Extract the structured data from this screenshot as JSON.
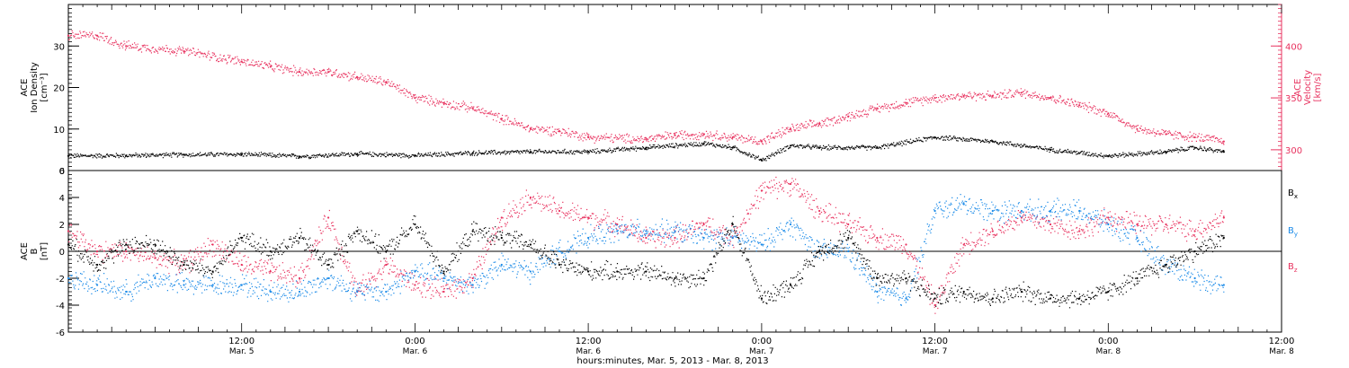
{
  "x_axis": {
    "label": "hours:minutes, Mar.  5, 2013 - Mar.  8, 2013",
    "range_hours": [
      0,
      84
    ],
    "ticks": [
      {
        "hours": 12,
        "time": "12:00",
        "date": "Mar. 5"
      },
      {
        "hours": 24,
        "time": "0:00",
        "date": "Mar. 6"
      },
      {
        "hours": 36,
        "time": "12:00",
        "date": "Mar. 6"
      },
      {
        "hours": 48,
        "time": "0:00",
        "date": "Mar. 7"
      },
      {
        "hours": 60,
        "time": "12:00",
        "date": "Mar. 7"
      },
      {
        "hours": 72,
        "time": "0:00",
        "date": "Mar. 8"
      },
      {
        "hours": 84,
        "time": "12:00",
        "date": "Mar. 8"
      }
    ]
  },
  "chart_data": [
    {
      "type": "scatter",
      "panel": "top",
      "left_axis": {
        "label_lines": [
          "ACE",
          "Ion Density",
          "[cm⁻³]"
        ],
        "ylim": [
          0,
          40
        ],
        "ticks": [
          0,
          10,
          20,
          30
        ],
        "color": "#000000"
      },
      "right_axis": {
        "label_lines": [
          "ACE",
          "Velocity",
          "[km/s]"
        ],
        "ylim": [
          280,
          440
        ],
        "ticks": [
          300,
          350,
          400
        ],
        "color": "#e8325f"
      },
      "series": [
        {
          "axis": "left",
          "color": "#000000",
          "x": [
            0,
            4,
            8,
            12,
            16,
            20,
            24,
            28,
            32,
            36,
            40,
            44,
            46,
            48,
            50,
            52,
            56,
            60,
            64,
            68,
            72,
            76,
            78,
            80
          ],
          "y": [
            3.5,
            3.6,
            3.8,
            3.9,
            3.4,
            4.0,
            3.6,
            4.2,
            4.5,
            4.5,
            5.5,
            6.5,
            5.5,
            2.5,
            6.0,
            5.5,
            5.5,
            8.0,
            7.0,
            5.0,
            3.5,
            4.5,
            5.5,
            4.5
          ]
        },
        {
          "axis": "right",
          "color": "#e8325f",
          "x": [
            0,
            2,
            4,
            8,
            12,
            14,
            16,
            18,
            20,
            22,
            24,
            26,
            28,
            30,
            32,
            34,
            36,
            40,
            42,
            44,
            46,
            48,
            50,
            52,
            54,
            56,
            58,
            60,
            62,
            64,
            66,
            68,
            70,
            72,
            74,
            76,
            78,
            80
          ],
          "y": [
            410,
            410,
            400,
            395,
            385,
            380,
            375,
            375,
            370,
            365,
            350,
            345,
            340,
            330,
            320,
            318,
            312,
            310,
            314,
            315,
            312,
            308,
            320,
            325,
            332,
            340,
            345,
            350,
            352,
            352,
            355,
            350,
            343,
            335,
            320,
            315,
            312,
            308
          ]
        }
      ]
    },
    {
      "type": "scatter",
      "panel": "bottom",
      "left_axis": {
        "label_lines": [
          "ACE",
          "B",
          "[nT]"
        ],
        "ylim": [
          -6,
          6
        ],
        "ticks": [
          -6,
          -4,
          -2,
          0,
          2,
          4,
          6
        ],
        "color": "#000000"
      },
      "legend": {
        "placement": "right",
        "entries": [
          {
            "name": "Bx",
            "main": "B",
            "sub": "x",
            "color": "#000000"
          },
          {
            "name": "By",
            "main": "B",
            "sub": "y",
            "color": "#1a8ae8"
          },
          {
            "name": "Bz",
            "main": "B",
            "sub": "z",
            "color": "#e8325f"
          }
        ]
      },
      "series": [
        {
          "name": "Bx",
          "color": "#000000",
          "x": [
            0,
            2,
            4,
            6,
            8,
            10,
            12,
            14,
            16,
            18,
            20,
            22,
            24,
            26,
            28,
            30,
            32,
            34,
            36,
            38,
            40,
            42,
            44,
            46,
            48,
            50,
            52,
            54,
            56,
            58,
            60,
            62,
            64,
            66,
            68,
            70,
            72,
            74,
            76,
            78,
            80
          ],
          "y": [
            0.5,
            -1.0,
            0.5,
            0.5,
            -1.0,
            -1.5,
            1.0,
            0.0,
            1.0,
            -1.0,
            1.5,
            0.0,
            2.0,
            -1.5,
            1.5,
            1.0,
            0.5,
            -1.0,
            -1.5,
            -1.5,
            -1.5,
            -2.0,
            -2.0,
            2.0,
            -3.5,
            -2.5,
            0.0,
            1.0,
            -2.0,
            -2.0,
            -3.5,
            -3.0,
            -3.5,
            -3.0,
            -3.5,
            -3.5,
            -3.0,
            -2.0,
            -1.0,
            0.0,
            1.0
          ]
        },
        {
          "name": "By",
          "color": "#1a8ae8",
          "x": [
            0,
            2,
            4,
            6,
            8,
            10,
            12,
            14,
            16,
            18,
            20,
            22,
            24,
            26,
            28,
            30,
            32,
            34,
            36,
            38,
            40,
            42,
            44,
            46,
            48,
            50,
            52,
            54,
            56,
            58,
            60,
            62,
            64,
            66,
            68,
            70,
            72,
            74,
            76,
            78,
            80
          ],
          "y": [
            -2.0,
            -2.5,
            -3.0,
            -2.0,
            -2.5,
            -2.5,
            -2.5,
            -3.0,
            -3.0,
            -2.0,
            -3.0,
            -3.0,
            -1.5,
            -2.0,
            -2.5,
            -1.0,
            -1.5,
            0.0,
            1.0,
            1.5,
            1.5,
            1.5,
            1.0,
            1.0,
            0.5,
            2.0,
            0.0,
            0.0,
            -3.0,
            -3.5,
            3.0,
            3.5,
            3.0,
            3.0,
            3.0,
            3.0,
            2.0,
            1.0,
            -1.0,
            -2.0,
            -2.5
          ]
        },
        {
          "name": "Bz",
          "color": "#e8325f",
          "x": [
            0,
            2,
            4,
            6,
            8,
            10,
            12,
            14,
            16,
            18,
            20,
            22,
            24,
            26,
            28,
            30,
            32,
            34,
            36,
            38,
            40,
            42,
            44,
            46,
            48,
            50,
            52,
            54,
            56,
            58,
            60,
            62,
            64,
            66,
            68,
            70,
            72,
            74,
            76,
            78,
            80
          ],
          "y": [
            1.5,
            0.0,
            0.0,
            -0.5,
            -1.0,
            0.5,
            -1.0,
            -1.5,
            -2.0,
            2.5,
            -3.0,
            -1.0,
            -2.5,
            -3.0,
            -2.0,
            2.5,
            4.0,
            3.0,
            2.5,
            2.0,
            1.0,
            1.0,
            2.0,
            1.0,
            4.5,
            5.0,
            3.0,
            2.0,
            1.0,
            0.5,
            -4.0,
            0.5,
            1.5,
            2.5,
            2.0,
            1.5,
            2.5,
            2.0,
            2.0,
            1.5,
            2.5
          ]
        }
      ]
    }
  ]
}
